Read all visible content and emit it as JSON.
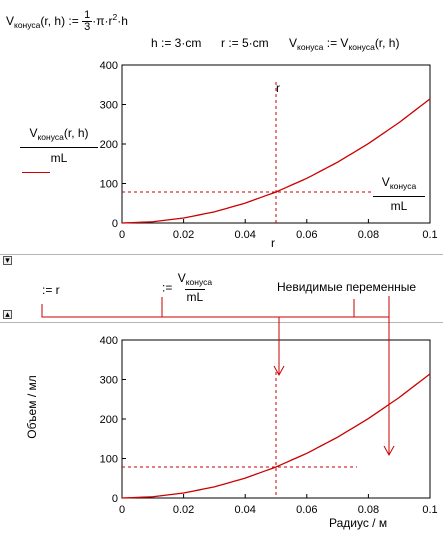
{
  "worksheet": {
    "definition": {
      "lhs_name": "V",
      "lhs_sub": "конуса",
      "lhs_args": "(r, h)",
      "assign": ":=",
      "frac_num": "1",
      "frac_den": "3",
      "rhs_pi": "·π·r",
      "rhs_exp": "2",
      "rhs_tail": "·h"
    },
    "assignments": {
      "h": "h := 3·cm",
      "r": "r := 5·cm",
      "v_name": "V",
      "v_sub": "конуса",
      "v_assign": ":=",
      "v_rhs_name": "V",
      "v_rhs_sub": "конуса",
      "v_rhs_args": "(r, h)"
    },
    "region_toggle_collapse": "▾",
    "region_toggle_expand": "▴",
    "hidden": {
      "assign_r": ":= r",
      "assign_frac_prefix": ":=",
      "frac_num_name": "V",
      "frac_num_sub": "конуса",
      "frac_den": "mL",
      "label": "Невидимые переменные"
    }
  },
  "plot1_legend": {
    "ylabel_name": "V",
    "ylabel_sub": "конуса",
    "ylabel_args": "(r, h)",
    "ylabel_den": "mL",
    "marker_name": "r",
    "fraction_num_name": "V",
    "fraction_num_sub": "конуса",
    "fraction_den": "mL",
    "xlabel": "r"
  },
  "plot2_legend": {
    "ylabel": "Объем / мл",
    "xlabel": "Радиус / м"
  },
  "colors": {
    "curve": "#cc0000",
    "marker": "#cc0000",
    "axes": "#000000",
    "annotation": "#cc0000"
  },
  "chart_data": [
    {
      "type": "line",
      "title": "",
      "xlabel": "r",
      "ylabel": "Vконуса(r,h) / mL",
      "xlim": [
        0,
        0.1
      ],
      "ylim": [
        0,
        400
      ],
      "x_ticks": [
        "0",
        "0.02",
        "0.04",
        "0.06",
        "0.08",
        "0.1"
      ],
      "y_ticks": [
        "0",
        "100",
        "200",
        "300",
        "400"
      ],
      "series": [
        {
          "formula": "pi*x^2*0.03/3*1e6",
          "x": [
            0,
            0.01,
            0.02,
            0.03,
            0.04,
            0.05,
            0.06,
            0.07,
            0.08,
            0.09,
            0.1
          ],
          "y": [
            0,
            3.14,
            12.57,
            28.27,
            50.27,
            78.54,
            113.1,
            153.94,
            201.06,
            254.47,
            314.16
          ]
        }
      ],
      "marker_x": 0.05,
      "marker_y": 78.54,
      "grid": false
    },
    {
      "type": "line",
      "title": "",
      "xlabel": "Радиус / м",
      "ylabel": "Объем / мл",
      "xlim": [
        0,
        0.1
      ],
      "ylim": [
        0,
        400
      ],
      "x_ticks": [
        "0",
        "0.02",
        "0.04",
        "0.06",
        "0.08",
        "0.1"
      ],
      "y_ticks": [
        "0",
        "100",
        "200",
        "300",
        "400"
      ],
      "series": [
        {
          "x": [
            0,
            0.01,
            0.02,
            0.03,
            0.04,
            0.05,
            0.06,
            0.07,
            0.08,
            0.09,
            0.1
          ],
          "y": [
            0,
            3.14,
            12.57,
            28.27,
            50.27,
            78.54,
            113.1,
            153.94,
            201.06,
            254.47,
            314.16
          ]
        }
      ],
      "marker_x": 0.05,
      "marker_y": 78.54,
      "grid": false
    }
  ]
}
